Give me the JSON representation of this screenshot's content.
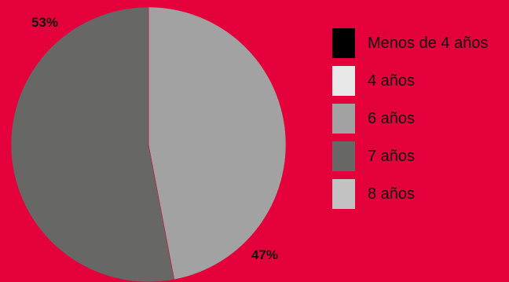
{
  "chart_data": {
    "type": "pie",
    "title": "",
    "slices": [
      {
        "label": "6 años",
        "value": 47,
        "display": "47%",
        "color": "#a2a2a2"
      },
      {
        "label": "7 años",
        "value": 53,
        "display": "53%",
        "color": "#676766"
      }
    ],
    "legend": {
      "placement": "right",
      "items": [
        {
          "label": "Menos de 4 años",
          "color": "#000000"
        },
        {
          "label": "4 años",
          "color": "#e8e8e8"
        },
        {
          "label": "6 años",
          "color": "#a2a2a2"
        },
        {
          "label": "7 años",
          "color": "#676766"
        },
        {
          "label": "8 años",
          "color": "#c2c2c2"
        }
      ]
    }
  },
  "colors": {
    "background": "#e4003a"
  }
}
